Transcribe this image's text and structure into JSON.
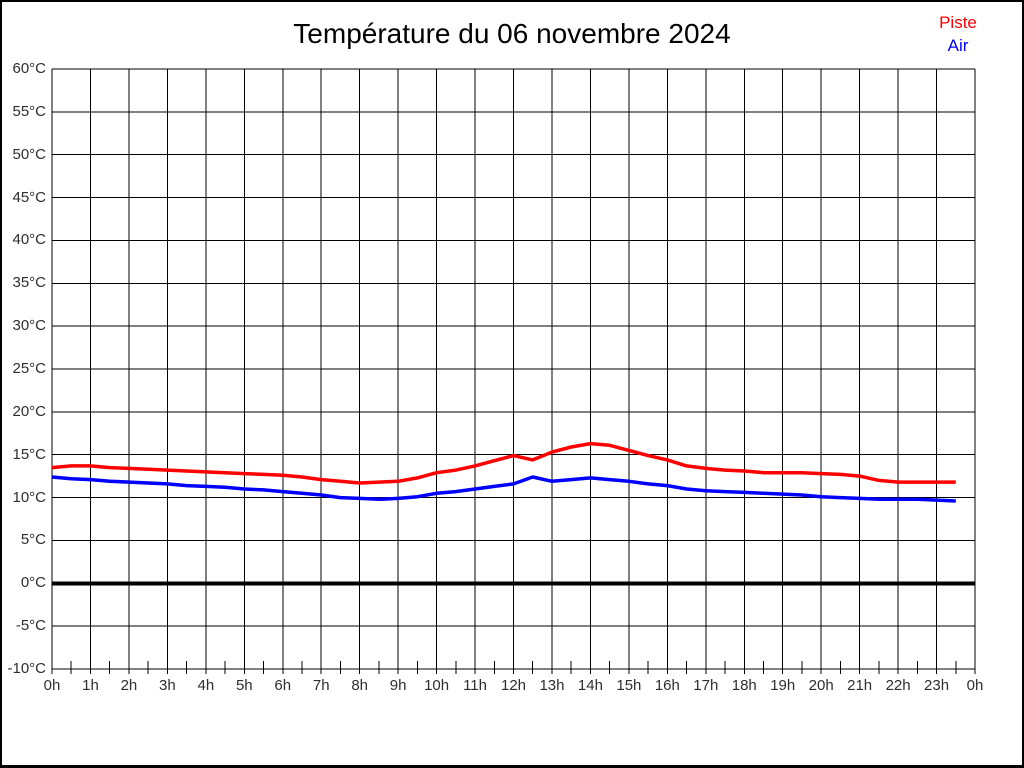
{
  "page": {
    "title": "Température du 06 novembre 2024"
  },
  "legend": {
    "items": [
      {
        "label": "Piste",
        "color": "#ff0000"
      },
      {
        "label": "Air",
        "color": "#0000ff"
      }
    ]
  },
  "chart_data": {
    "type": "line",
    "title": "Température du 06 novembre 2024",
    "x_unit": "hour",
    "x": [
      0,
      0.5,
      1,
      1.5,
      2,
      2.5,
      3,
      3.5,
      4,
      4.5,
      5,
      5.5,
      6,
      6.5,
      7,
      7.5,
      8,
      8.5,
      9,
      9.5,
      10,
      10.5,
      11,
      11.5,
      12,
      12.5,
      13,
      13.5,
      14,
      14.5,
      15,
      15.5,
      16,
      16.5,
      17,
      17.5,
      18,
      18.5,
      19,
      19.5,
      20,
      20.5,
      21,
      21.5,
      22,
      22.5,
      23,
      23.5
    ],
    "series": [
      {
        "name": "Piste",
        "color": "#ff0000",
        "values": [
          13.5,
          13.7,
          13.7,
          13.5,
          13.4,
          13.3,
          13.2,
          13.1,
          13.0,
          12.9,
          12.8,
          12.7,
          12.6,
          12.4,
          12.1,
          11.9,
          11.7,
          11.8,
          11.9,
          12.3,
          12.9,
          13.2,
          13.7,
          14.3,
          14.9,
          14.4,
          15.3,
          15.9,
          16.3,
          16.1,
          15.5,
          14.9,
          14.4,
          13.7,
          13.4,
          13.2,
          13.1,
          12.9,
          12.9,
          12.9,
          12.8,
          12.7,
          12.5,
          12.0,
          11.8,
          11.8,
          11.8,
          11.8
        ]
      },
      {
        "name": "Air",
        "color": "#0000ff",
        "values": [
          12.4,
          12.2,
          12.1,
          11.9,
          11.8,
          11.7,
          11.6,
          11.4,
          11.3,
          11.2,
          11.0,
          10.9,
          10.7,
          10.5,
          10.3,
          10.0,
          9.9,
          9.8,
          9.9,
          10.1,
          10.5,
          10.7,
          11.0,
          11.3,
          11.6,
          12.4,
          11.9,
          12.1,
          12.3,
          12.1,
          11.9,
          11.6,
          11.4,
          11.0,
          10.8,
          10.7,
          10.6,
          10.5,
          10.4,
          10.3,
          10.1,
          10.0,
          9.9,
          9.8,
          9.8,
          9.8,
          9.7,
          9.6
        ]
      }
    ],
    "xlim": [
      0,
      24
    ],
    "ylim": [
      -10,
      60
    ],
    "y_tick_step": 5,
    "y_tick_labels": [
      "60°C",
      "55°C",
      "50°C",
      "45°C",
      "40°C",
      "35°C",
      "30°C",
      "25°C",
      "20°C",
      "15°C",
      "10°C",
      "5°C",
      "0°C",
      "-5°C",
      "-10°C"
    ],
    "x_tick_labels": [
      "0h",
      "1h",
      "2h",
      "3h",
      "4h",
      "5h",
      "6h",
      "7h",
      "8h",
      "9h",
      "10h",
      "11h",
      "12h",
      "13h",
      "14h",
      "15h",
      "16h",
      "17h",
      "18h",
      "19h",
      "20h",
      "21h",
      "22h",
      "23h",
      "0h"
    ],
    "grid": true,
    "zero_line_value": 0,
    "legend_position": "top-right"
  },
  "colors": {
    "grid": "#000000",
    "zero_line": "#000000",
    "text": "#2e2e2e",
    "background": "#ffffff"
  }
}
